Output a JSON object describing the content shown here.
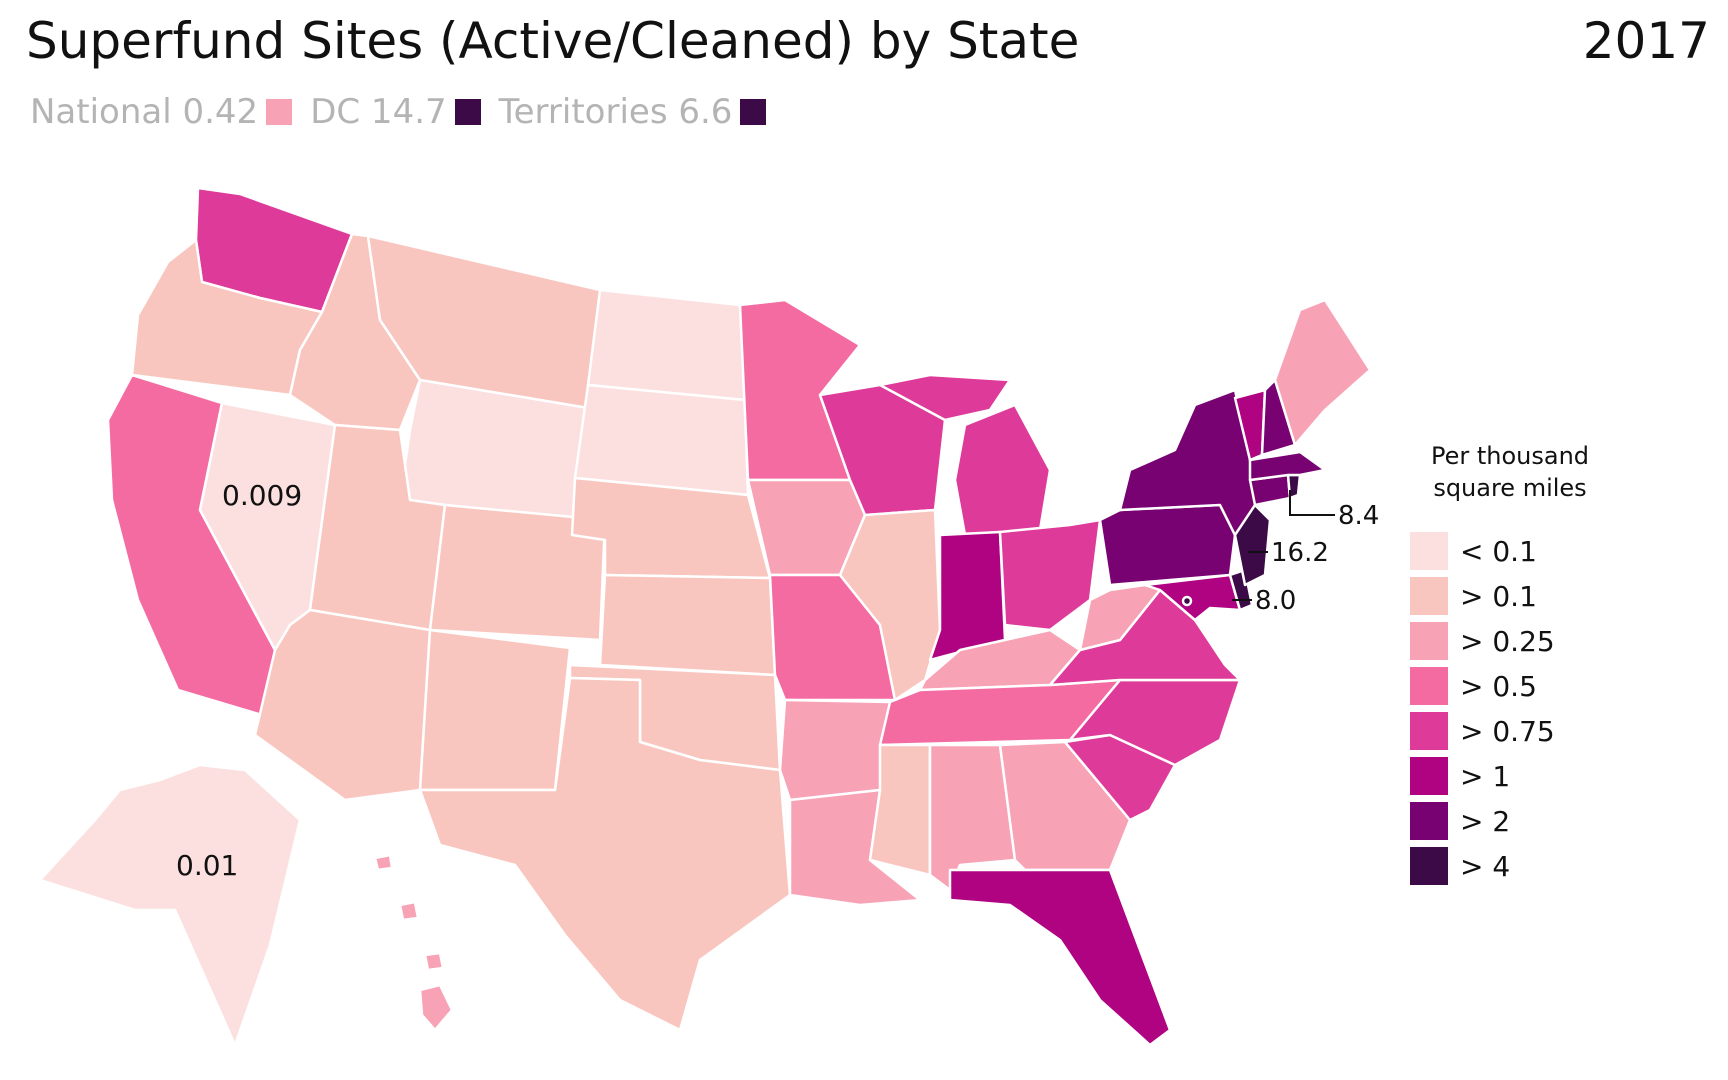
{
  "title": "Superfund Sites (Active/Cleaned) by State",
  "year": "2017",
  "summary": [
    {
      "label": "National 0.42",
      "color": "#f8a2b6"
    },
    {
      "label": "DC 14.7",
      "color": "#3c0a46"
    },
    {
      "label": "Territories 6.6",
      "color": "#3c0a46"
    }
  ],
  "legend": {
    "title_line1": "Per thousand",
    "title_line2": "square miles",
    "bins": [
      {
        "label": "< 0.1",
        "color": "#fce0e0"
      },
      {
        "label": "> 0.1",
        "color": "#f9c6bf"
      },
      {
        "label": "> 0.25",
        "color": "#f8a2b6"
      },
      {
        "label": "> 0.5",
        "color": "#f46ba2"
      },
      {
        "label": "> 0.75",
        "color": "#de3a9a"
      },
      {
        "label": "> 1",
        "color": "#af0382"
      },
      {
        "label": "> 2",
        "color": "#790272"
      },
      {
        "label": "> 4",
        "color": "#3c0a46"
      }
    ]
  },
  "annotations": {
    "nevada": "0.009",
    "alaska": "0.01",
    "rhode_island": "8.4",
    "new_jersey": "16.2",
    "delaware": "8.0"
  }
}
